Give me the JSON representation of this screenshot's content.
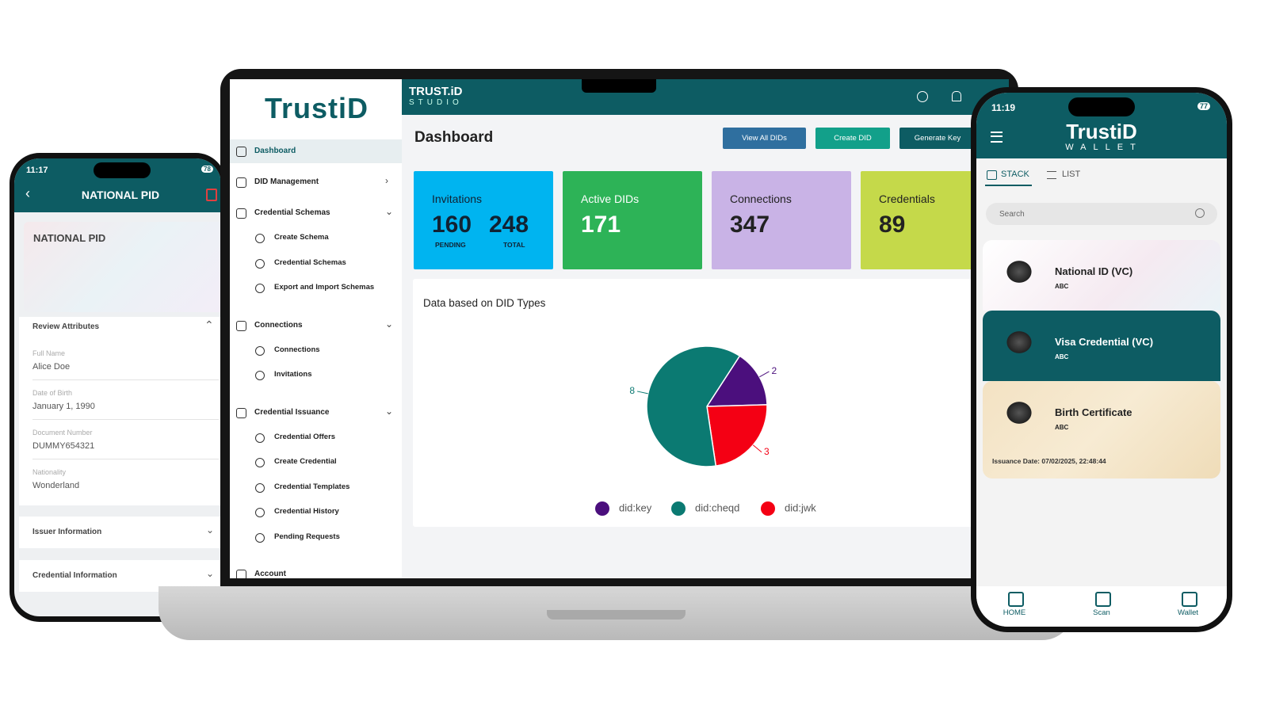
{
  "left_phone": {
    "time": "11:17",
    "battery": "78",
    "title": "NATIONAL PID",
    "card_title": "NATIONAL PID",
    "review_heading": "Review Attributes",
    "attributes": [
      {
        "label": "Full Name",
        "value": "Alice Doe"
      },
      {
        "label": "Date of Birth",
        "value": "January 1, 1990"
      },
      {
        "label": "Document Number",
        "value": "DUMMY654321"
      },
      {
        "label": "Nationality",
        "value": "Wonderland"
      }
    ],
    "sections": [
      "Issuer Information",
      "Credential Information"
    ]
  },
  "laptop": {
    "logo": "TrustiD",
    "brand": "TRUST.iD",
    "brand_sub": "STUDIO",
    "nav": [
      {
        "label": "Dashboard"
      },
      {
        "label": "DID Management"
      },
      {
        "label": "Credential Schemas",
        "items": [
          "Create Schema",
          "Credential Schemas",
          "Export and Import Schemas"
        ]
      },
      {
        "label": "Connections",
        "items": [
          "Connections",
          "Invitations"
        ]
      },
      {
        "label": "Credential Issuance",
        "items": [
          "Credential Offers",
          "Create Credential",
          "Credential Templates",
          "Credential History",
          "Pending Requests"
        ]
      },
      {
        "label": "Account"
      }
    ],
    "page_title": "Dashboard",
    "buttons": [
      "View All DIDs",
      "Create DID",
      "Generate Key"
    ],
    "stats": [
      {
        "label": "Invitations",
        "values": [
          {
            "value": "160",
            "caption": "PENDING"
          },
          {
            "value": "248",
            "caption": "TOTAL"
          }
        ]
      },
      {
        "label": "Active DIDs",
        "values": [
          {
            "value": "171"
          }
        ]
      },
      {
        "label": "Connections",
        "values": [
          {
            "value": "347"
          }
        ]
      },
      {
        "label": "Credentials",
        "values": [
          {
            "value": "89"
          }
        ]
      }
    ]
  },
  "chart_data": {
    "type": "pie",
    "title": "Data based on DID Types",
    "categories": [
      "did:key",
      "did:cheqd",
      "did:jwk"
    ],
    "values": [
      2,
      8,
      3
    ],
    "colors": [
      "#4b0f7d",
      "#0b7a72",
      "#f40014"
    ]
  },
  "right_phone": {
    "time": "11:19",
    "battery": "77",
    "logo": "TrustiD",
    "logo_sub": "WALLET",
    "tabs": [
      "STACK",
      "LIST"
    ],
    "search": "Search",
    "cards": [
      {
        "title": "National ID (VC)",
        "issuer": "ABC"
      },
      {
        "title": "Visa Credential (VC)",
        "issuer": "ABC"
      },
      {
        "title": "Birth Certificate",
        "issuer": "ABC"
      }
    ],
    "issuance": "Issuance Date: 07/02/2025, 22:48:44",
    "nav": [
      "HOME",
      "Scan",
      "Wallet"
    ]
  }
}
